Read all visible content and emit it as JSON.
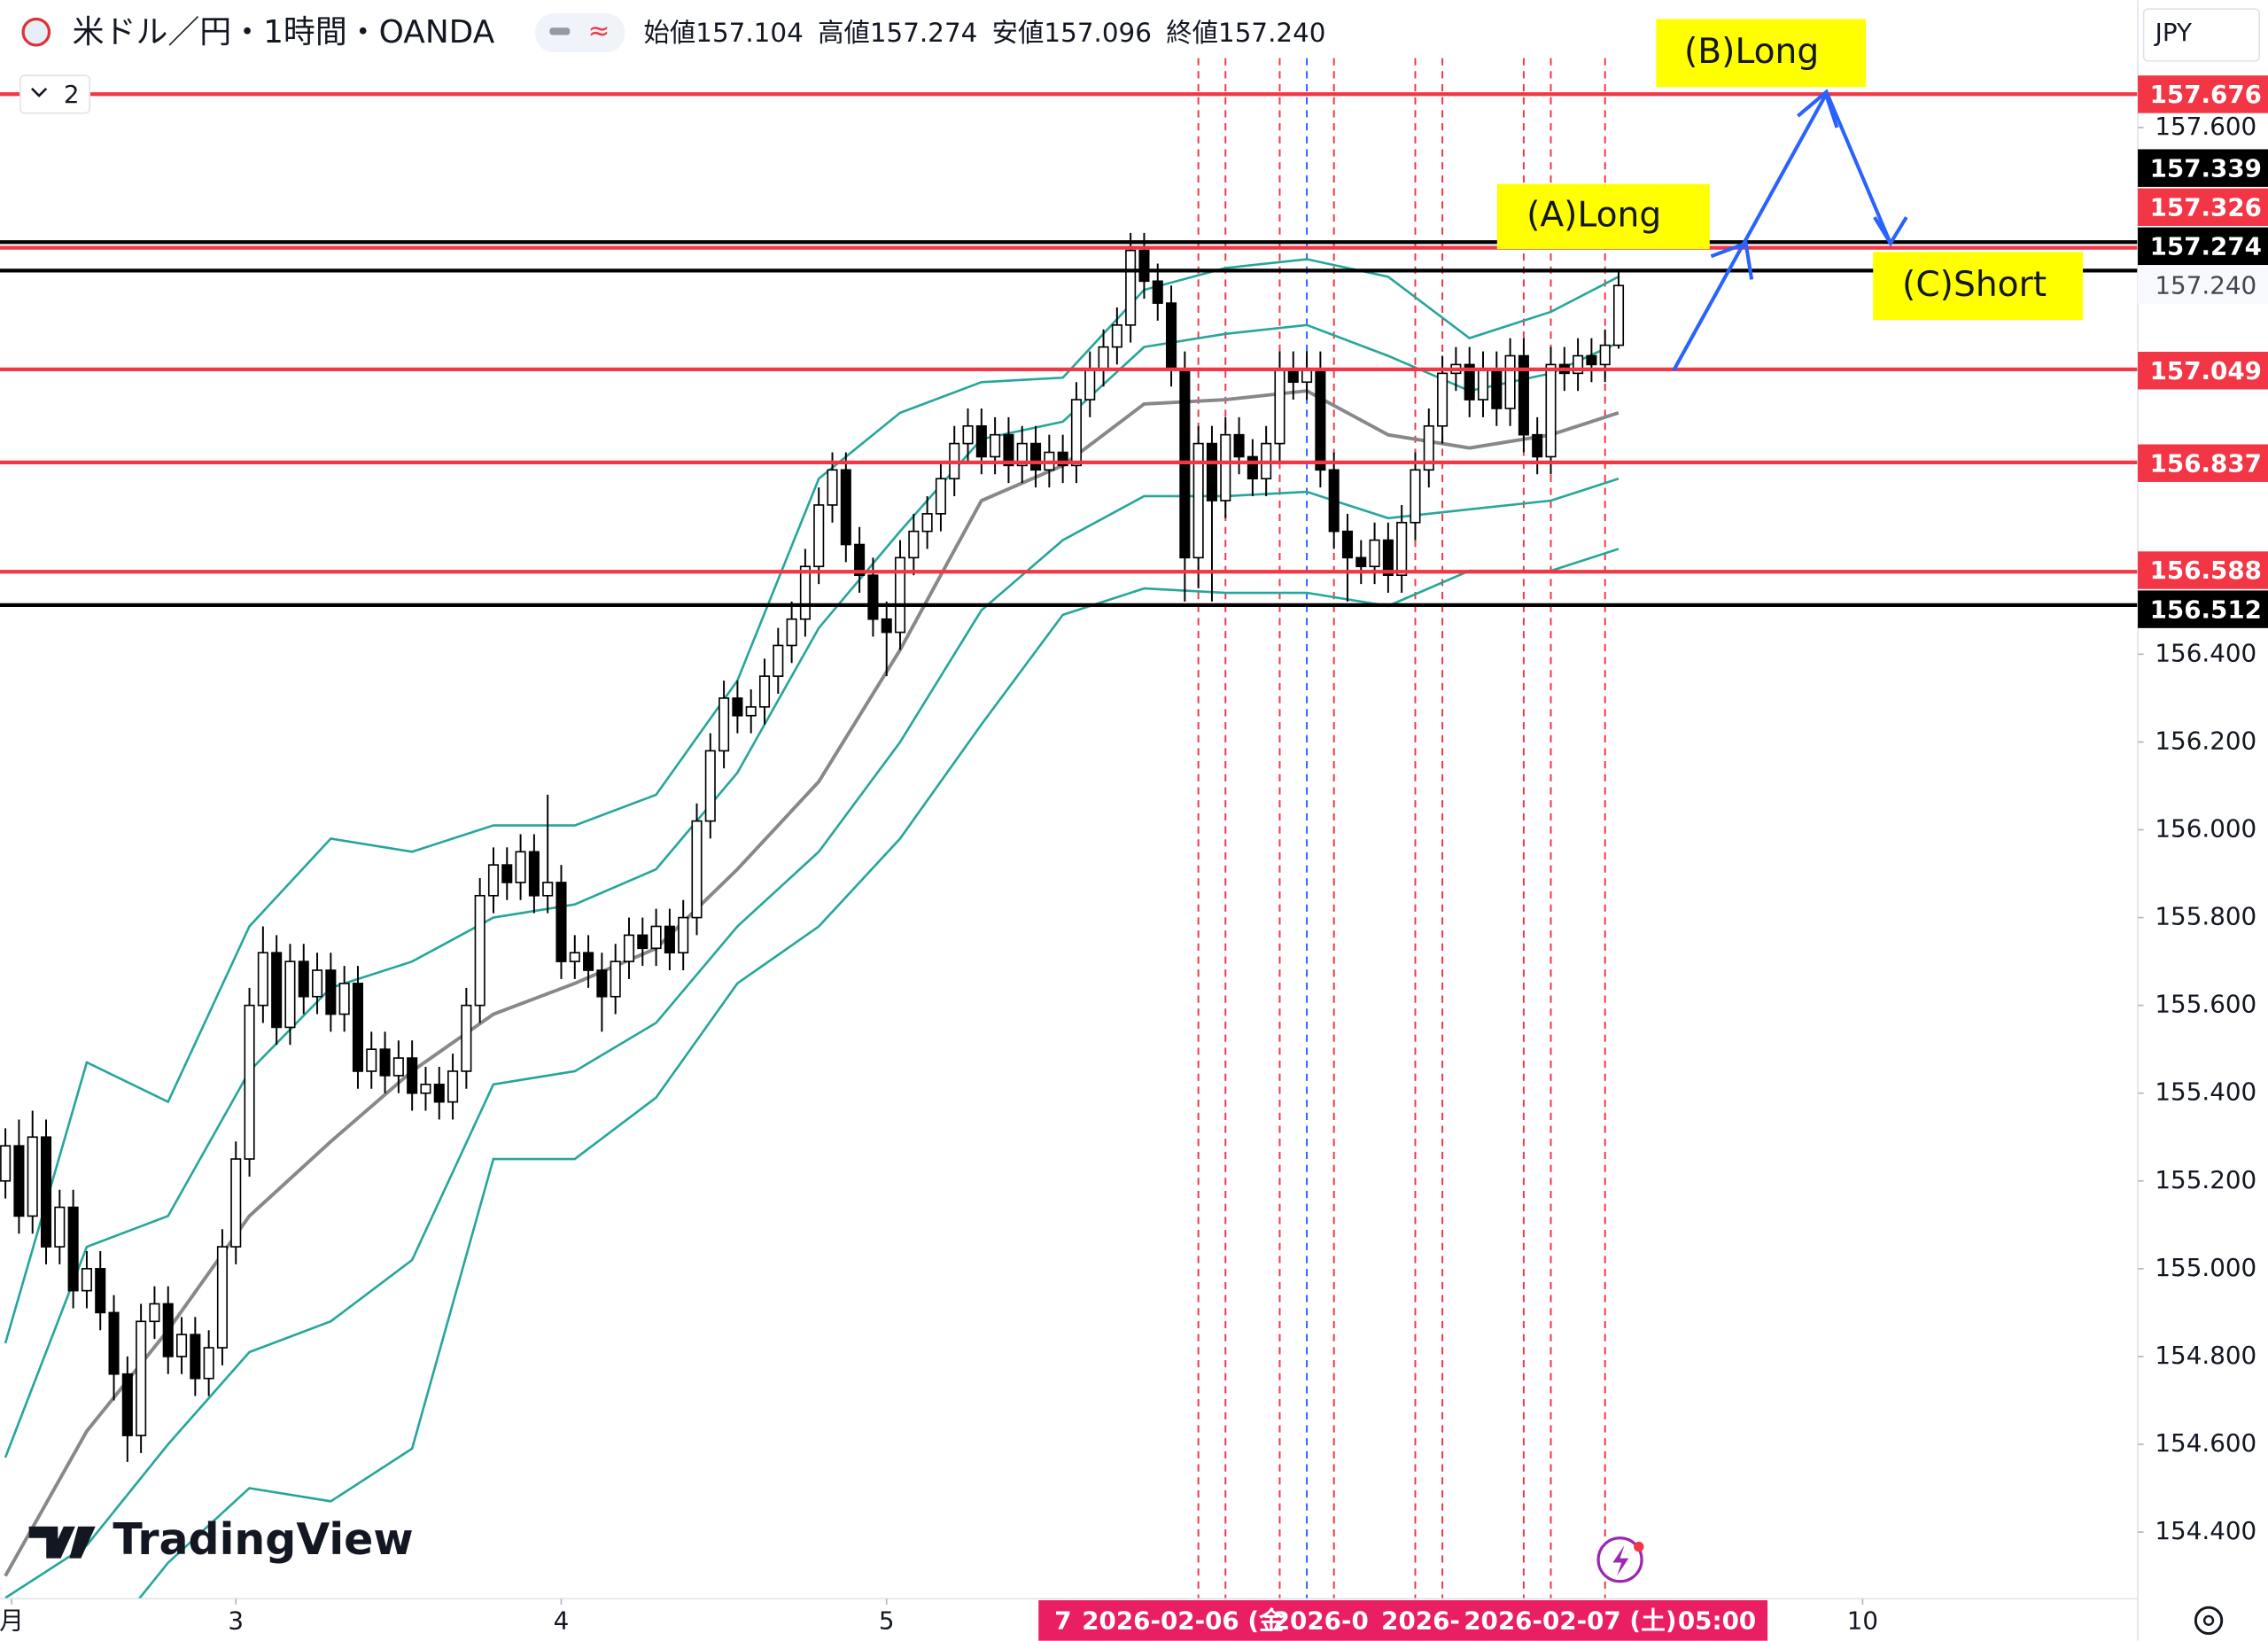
{
  "header": {
    "symbol": "米ドル／円・1時間・OANDA",
    "indicators": "2",
    "currency": "JPY",
    "ohlc": [
      {
        "label": "始値",
        "value": 157.104
      },
      {
        "label": "高値",
        "value": 157.274
      },
      {
        "label": "安値",
        "value": 157.096
      },
      {
        "label": "終値",
        "value": {
          "value": 157.24,
          "label": "157.240"
        }
      }
    ]
  },
  "ui": {
    "watermark": "TradingView",
    "annotations": [
      "(A)Long",
      "(B)Long",
      "(C)Short"
    ],
    "time_labels": [
      "7",
      "2026-02-06 (金",
      "2026-0",
      "2026-",
      "2026-02-07 (土)",
      "05:00"
    ]
  },
  "chart_data": {
    "type": "candlestick",
    "x": [
      -17,
      -16,
      -15,
      -14,
      -13,
      -12,
      -11,
      -10,
      -9,
      -8,
      -7,
      -6,
      -5,
      -4,
      -3,
      -2,
      -1,
      0,
      1,
      2,
      3,
      4,
      5,
      6,
      7,
      8,
      9,
      10,
      11,
      12,
      13,
      14,
      15,
      16,
      17,
      18,
      19,
      20,
      21,
      22,
      23,
      24,
      25,
      26,
      27,
      28,
      29,
      30,
      31,
      32,
      33,
      34,
      35,
      36,
      37,
      38,
      39,
      40,
      41,
      42,
      43,
      44,
      45,
      46,
      47,
      48,
      49,
      50,
      51,
      52,
      53,
      54,
      55,
      56,
      57,
      58,
      59,
      60,
      61,
      62,
      63,
      64,
      65,
      66,
      67,
      68,
      69,
      70,
      71,
      72,
      73,
      74,
      75,
      76,
      77,
      78,
      79,
      80,
      81,
      82,
      83,
      84,
      85,
      86,
      87,
      88,
      89,
      90,
      91,
      92,
      93,
      94,
      95,
      96,
      97,
      98,
      99,
      100,
      101,
      102
    ],
    "open": [
      155.2,
      155.28,
      155.12,
      155.3,
      155.05,
      155.14,
      154.95,
      155.0,
      154.9,
      154.76,
      154.62,
      154.88,
      154.92,
      154.8,
      154.85,
      154.75,
      154.82,
      155.05,
      155.25,
      155.6,
      155.72,
      155.55,
      155.7,
      155.62,
      155.68,
      155.58,
      155.65,
      155.45,
      155.5,
      155.44,
      155.48,
      155.4,
      155.42,
      155.38,
      155.45,
      155.6,
      155.85,
      155.92,
      155.88,
      155.95,
      155.85,
      155.88,
      155.7,
      155.72,
      155.68,
      155.62,
      155.7,
      155.76,
      155.73,
      155.78,
      155.72,
      155.8,
      156.02,
      156.18,
      156.3,
      156.26,
      156.28,
      156.35,
      156.42,
      156.48,
      156.6,
      156.74,
      156.82,
      156.65,
      156.58,
      156.48,
      156.45,
      156.62,
      156.68,
      156.72,
      156.8,
      156.88,
      156.92,
      156.85,
      156.9,
      156.83,
      156.88,
      156.82,
      156.86,
      156.83,
      156.98,
      157.05,
      157.1,
      157.15,
      157.32,
      157.25,
      157.2,
      157.05,
      156.62,
      156.88,
      156.75,
      156.9,
      156.85,
      156.8,
      156.88,
      157.05,
      157.02,
      157.05,
      156.82,
      156.68,
      156.62,
      156.6,
      156.66,
      156.58,
      156.7,
      156.82,
      156.92,
      157.04,
      157.06,
      156.98,
      157.05,
      156.96,
      157.08,
      156.9,
      156.85,
      157.06,
      157.04,
      157.08,
      157.06,
      157.104
    ],
    "high": [
      155.32,
      155.34,
      155.36,
      155.34,
      155.18,
      155.18,
      155.04,
      155.04,
      154.94,
      154.8,
      154.92,
      154.96,
      154.96,
      154.89,
      154.89,
      154.86,
      155.09,
      155.29,
      155.64,
      155.78,
      155.76,
      155.74,
      155.74,
      155.72,
      155.72,
      155.69,
      155.69,
      155.54,
      155.54,
      155.52,
      155.52,
      155.46,
      155.46,
      155.49,
      155.64,
      155.89,
      155.96,
      155.96,
      155.99,
      155.99,
      156.08,
      155.92,
      155.76,
      155.76,
      155.72,
      155.74,
      155.8,
      155.8,
      155.82,
      155.82,
      155.84,
      156.06,
      156.22,
      156.34,
      156.34,
      156.32,
      156.39,
      156.46,
      156.52,
      156.64,
      156.78,
      156.86,
      156.86,
      156.69,
      156.62,
      156.52,
      156.66,
      156.72,
      156.76,
      156.84,
      156.92,
      156.96,
      156.96,
      156.94,
      156.94,
      156.92,
      156.92,
      156.9,
      156.9,
      157.02,
      157.09,
      157.14,
      157.19,
      157.36,
      157.36,
      157.29,
      157.24,
      157.09,
      156.92,
      156.92,
      156.94,
      156.94,
      156.89,
      156.92,
      157.09,
      157.09,
      157.09,
      157.09,
      156.86,
      156.72,
      156.66,
      156.7,
      156.7,
      156.74,
      156.86,
      156.96,
      157.08,
      157.1,
      157.1,
      157.09,
      157.09,
      157.12,
      157.12,
      156.94,
      157.1,
      157.1,
      157.12,
      157.12,
      157.14,
      157.274
    ],
    "low": [
      155.16,
      155.08,
      155.08,
      155.01,
      155.01,
      154.91,
      154.91,
      154.86,
      154.7,
      154.56,
      154.58,
      154.84,
      154.76,
      154.76,
      154.71,
      154.71,
      154.78,
      155.01,
      155.21,
      155.56,
      155.51,
      155.51,
      155.58,
      155.58,
      155.54,
      155.54,
      155.41,
      155.41,
      155.4,
      155.4,
      155.36,
      155.36,
      155.34,
      155.34,
      155.41,
      155.56,
      155.81,
      155.84,
      155.84,
      155.81,
      155.81,
      155.66,
      155.66,
      155.64,
      155.54,
      155.58,
      155.66,
      155.69,
      155.69,
      155.68,
      155.68,
      155.76,
      155.98,
      156.14,
      156.22,
      156.22,
      156.24,
      156.31,
      156.38,
      156.44,
      156.56,
      156.7,
      156.61,
      156.54,
      156.44,
      156.35,
      156.41,
      156.58,
      156.64,
      156.68,
      156.76,
      156.84,
      156.81,
      156.81,
      156.79,
      156.79,
      156.78,
      156.78,
      156.79,
      156.79,
      156.94,
      157.01,
      157.06,
      157.11,
      157.21,
      157.16,
      157.01,
      156.52,
      156.55,
      156.52,
      156.71,
      156.81,
      156.76,
      156.76,
      156.84,
      156.98,
      156.98,
      156.78,
      156.64,
      156.52,
      156.56,
      156.56,
      156.54,
      156.54,
      156.66,
      156.78,
      156.88,
      157.0,
      156.94,
      156.94,
      156.92,
      156.92,
      156.86,
      156.81,
      156.81,
      157.0,
      157.0,
      157.02,
      157.02,
      157.096
    ],
    "close": [
      155.28,
      155.12,
      155.3,
      155.05,
      155.14,
      154.95,
      155.0,
      154.9,
      154.76,
      154.62,
      154.88,
      154.92,
      154.8,
      154.85,
      154.75,
      154.82,
      155.05,
      155.25,
      155.6,
      155.72,
      155.55,
      155.7,
      155.62,
      155.68,
      155.58,
      155.65,
      155.45,
      155.5,
      155.44,
      155.48,
      155.4,
      155.42,
      155.38,
      155.45,
      155.6,
      155.85,
      155.92,
      155.88,
      155.95,
      155.85,
      155.88,
      155.7,
      155.72,
      155.68,
      155.62,
      155.7,
      155.76,
      155.73,
      155.78,
      155.72,
      155.8,
      156.02,
      156.18,
      156.3,
      156.26,
      156.28,
      156.35,
      156.42,
      156.48,
      156.6,
      156.74,
      156.82,
      156.65,
      156.58,
      156.48,
      156.45,
      156.62,
      156.68,
      156.72,
      156.8,
      156.88,
      156.92,
      156.85,
      156.9,
      156.83,
      156.88,
      156.82,
      156.86,
      156.83,
      156.98,
      157.05,
      157.1,
      157.15,
      157.32,
      157.25,
      157.2,
      157.05,
      156.62,
      156.88,
      156.75,
      156.9,
      156.85,
      156.8,
      156.88,
      157.05,
      157.02,
      157.05,
      156.82,
      156.68,
      156.62,
      156.6,
      156.66,
      156.58,
      156.7,
      156.82,
      156.92,
      157.04,
      157.06,
      156.98,
      157.05,
      156.96,
      157.08,
      156.9,
      156.85,
      157.06,
      157.04,
      157.08,
      157.06,
      157.104,
      157.24
    ],
    "up_color": "#ffffff",
    "down_color": "#000000",
    "xlim": [
      -17.4,
      140.3
    ],
    "ylim": [
      154.248,
      157.89
    ],
    "xticks": [
      {
        "value": -24,
        "label": "月"
      },
      {
        "value": 0,
        "label": "3"
      },
      {
        "value": 24,
        "label": "4"
      },
      {
        "value": 48,
        "label": "5"
      },
      {
        "value": 120,
        "label": "10"
      }
    ],
    "yticks": [
      {
        "value": 157.6,
        "label": "157.600"
      },
      {
        "value": 156.4,
        "label": "156.400"
      },
      {
        "value": 156.2,
        "label": "156.200"
      },
      {
        "value": 156.0,
        "label": "156.000"
      },
      {
        "value": 155.8,
        "label": "155.800"
      },
      {
        "value": 155.6,
        "label": "155.600"
      },
      {
        "value": 155.4,
        "label": "155.400"
      },
      {
        "value": 155.2,
        "label": "155.200"
      },
      {
        "value": 155.0,
        "label": "155.000"
      },
      {
        "value": 154.8,
        "label": "154.800"
      },
      {
        "value": 154.6,
        "label": "154.600"
      },
      {
        "value": 154.4,
        "label": "154.400"
      }
    ],
    "grid": false,
    "bands": [
      {
        "color": "#888888",
        "x": [
          -17,
          -11,
          -5,
          1,
          7,
          13,
          19,
          25,
          31,
          37,
          43,
          49,
          55,
          61,
          67,
          73,
          79,
          85,
          91,
          97,
          102
        ],
        "values": [
          154.3,
          154.63,
          154.86,
          155.12,
          155.29,
          155.45,
          155.58,
          155.65,
          155.73,
          155.91,
          156.11,
          156.41,
          156.75,
          156.83,
          156.97,
          156.98,
          157.0,
          156.9,
          156.87,
          156.9,
          156.95
        ]
      },
      {
        "color": "#26a69a",
        "x": [
          -17,
          -11,
          -5,
          1,
          7,
          13,
          19,
          25,
          31,
          37,
          43,
          49,
          55,
          61,
          67,
          73,
          79,
          85,
          91,
          97,
          102
        ],
        "values": [
          154.83,
          155.47,
          155.38,
          155.78,
          155.98,
          155.95,
          156.01,
          156.01,
          156.08,
          156.34,
          156.8,
          156.95,
          157.02,
          157.03,
          157.23,
          157.28,
          157.3,
          157.26,
          157.12,
          157.18,
          157.26
        ]
      },
      {
        "color": "#26a69a",
        "x": [
          -17,
          -11,
          -5,
          1,
          7,
          13,
          19,
          25,
          31,
          37,
          43,
          49,
          55,
          61,
          67,
          73,
          79,
          85,
          91,
          97,
          102
        ],
        "values": [
          154.57,
          155.05,
          155.12,
          155.45,
          155.64,
          155.7,
          155.8,
          155.83,
          155.91,
          156.13,
          156.46,
          156.68,
          156.89,
          156.93,
          157.1,
          157.13,
          157.15,
          157.08,
          157.0,
          157.04,
          157.11
        ]
      },
      {
        "color": "#26a69a",
        "x": [
          -17,
          -11,
          -5,
          1,
          7,
          13,
          19,
          25,
          31,
          37,
          43,
          49,
          55,
          61,
          67,
          73,
          79,
          85,
          91,
          97,
          102
        ],
        "values": [
          154.25,
          154.37,
          154.6,
          154.81,
          154.88,
          155.02,
          155.42,
          155.45,
          155.56,
          155.78,
          155.95,
          156.2,
          156.5,
          156.66,
          156.76,
          156.76,
          156.77,
          156.71,
          156.73,
          156.75,
          156.8
        ]
      },
      {
        "color": "#26a69a",
        "x": [
          -17,
          -11,
          -5,
          1,
          7,
          13,
          19,
          25,
          31,
          37,
          43,
          49,
          55,
          61,
          67,
          73,
          79,
          85,
          91,
          97,
          102
        ],
        "values": [
          154.2,
          154.1,
          154.33,
          154.5,
          154.47,
          154.59,
          155.25,
          155.25,
          155.39,
          155.65,
          155.78,
          155.98,
          156.24,
          156.49,
          156.55,
          156.54,
          156.54,
          156.51,
          156.59,
          156.59,
          156.64
        ]
      }
    ],
    "hlines": [
      {
        "value": 157.676,
        "color": "#f23645"
      },
      {
        "value": 157.339,
        "color": "#000000"
      },
      {
        "value": 157.326,
        "color": "#f23645"
      },
      {
        "value": 157.274,
        "color": "#000000"
      },
      {
        "value": 157.049,
        "color": "#f23645"
      },
      {
        "value": 156.837,
        "color": "#f23645"
      },
      {
        "value": 156.588,
        "color": "#f23645"
      },
      {
        "value": 156.512,
        "color": "#000000"
      }
    ],
    "vlines": [
      {
        "x": 71,
        "color": "#f23645"
      },
      {
        "x": 73,
        "color": "#f23645"
      },
      {
        "x": 77,
        "color": "#f23645"
      },
      {
        "x": 79,
        "color": "#2962ff"
      },
      {
        "x": 81,
        "color": "#f23645"
      },
      {
        "x": 87,
        "color": "#f23645"
      },
      {
        "x": 89,
        "color": "#f23645"
      },
      {
        "x": 95,
        "color": "#f23645"
      },
      {
        "x": 97,
        "color": "#f23645"
      },
      {
        "x": 101,
        "color": "#f23645"
      }
    ],
    "price_label": {
      "value": 157.24,
      "label": "157.240"
    }
  }
}
